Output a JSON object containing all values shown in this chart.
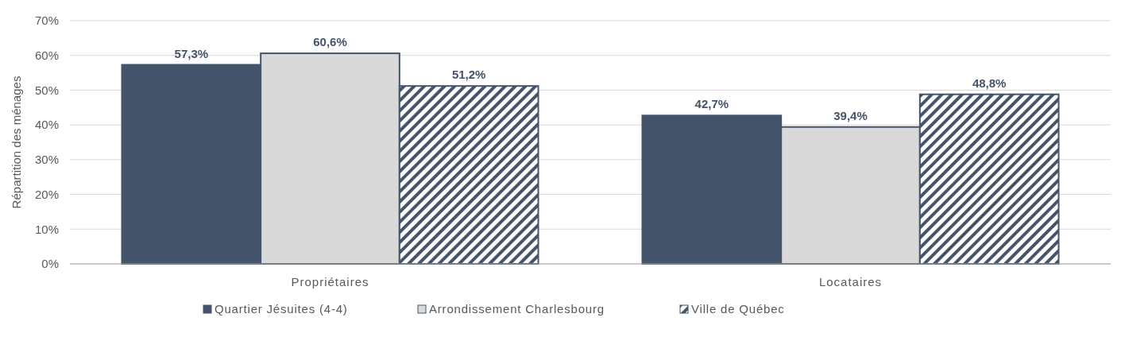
{
  "chart_data": {
    "type": "bar",
    "ylabel": "Répartition des ménages",
    "categories": [
      "Propriétaires",
      "Locataires"
    ],
    "series": [
      {
        "name": "Quartier Jésuites (4-4)",
        "color": "#44546a",
        "values": [
          57.3,
          42.7
        ],
        "value_labels": [
          "57,3%",
          "42,7%"
        ]
      },
      {
        "name": "Arrondissement Charlesbourg",
        "color": "#d9d9d9",
        "values": [
          60.6,
          39.4
        ],
        "value_labels": [
          "60,6%",
          "39,4%"
        ]
      },
      {
        "name": "Ville de Québec",
        "color": "#44546a",
        "values": [
          51.2,
          48.8
        ],
        "value_labels": [
          "51,2%",
          "48,8%"
        ]
      }
    ],
    "ylim": [
      0,
      70
    ],
    "yticks": [
      {
        "value": 0,
        "label": "0%"
      },
      {
        "value": 10,
        "label": "10%"
      },
      {
        "value": 20,
        "label": "20%"
      },
      {
        "value": 30,
        "label": "30%"
      },
      {
        "value": 40,
        "label": "40%"
      },
      {
        "value": 50,
        "label": "50%"
      },
      {
        "value": 60,
        "label": "60%"
      },
      {
        "value": 70,
        "label": "70%"
      }
    ],
    "grid": "y",
    "legend": "bottom"
  }
}
